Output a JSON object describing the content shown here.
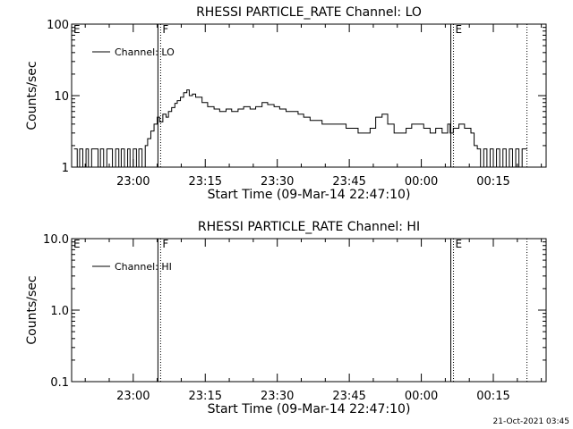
{
  "colors": {
    "background": "#ffffff",
    "foreground": "#000000"
  },
  "footer": {
    "timestamp": "21-Oct-2021 03:45"
  },
  "chart_data": [
    {
      "type": "line",
      "title": "RHESSI PARTICLE_RATE Channel: LO",
      "xlabel": "Start Time (09-Mar-14 22:47:10)",
      "ylabel": "Counts/sec",
      "yscale": "log",
      "ylim": [
        1,
        100
      ],
      "xlim": [
        "22:47:10",
        "00:26:00"
      ],
      "xticks": [
        "23:00",
        "23:15",
        "23:30",
        "23:45",
        "00:00",
        "00:15"
      ],
      "yticks": [
        "1",
        "10",
        "100"
      ],
      "grid": false,
      "legend": {
        "label": "Channel: LO",
        "position": "top-left"
      },
      "markers": [
        {
          "label": "F",
          "time": "23:05:20",
          "style": "solid+dotted"
        },
        {
          "label": "E",
          "time": "00:06:20",
          "style": "solid+dotted"
        },
        {
          "label": "",
          "time": "00:22:00",
          "style": "dotted"
        }
      ],
      "series": [
        {
          "x": [
            "22:47:40",
            "22:48:20",
            "22:48:50",
            "22:49:30",
            "22:50:10",
            "22:50:40",
            "22:51:20",
            "22:52:00",
            "22:52:40",
            "22:53:10",
            "22:53:50",
            "22:54:30",
            "22:55:00",
            "22:55:40",
            "22:56:20",
            "22:57:00",
            "22:57:30",
            "22:58:10",
            "22:58:50",
            "22:59:20",
            "23:00:00",
            "23:00:40",
            "23:01:10",
            "23:01:50",
            "23:02:30",
            "23:03:00",
            "23:03:40",
            "23:04:20",
            "23:05:00",
            "23:05:30",
            "23:06:10",
            "23:06:50",
            "23:07:20",
            "23:08:00",
            "23:08:40",
            "23:09:10",
            "23:09:50",
            "23:10:30",
            "23:11:10",
            "23:11:40",
            "23:12:20",
            "23:13:00",
            "23:14:20",
            "23:15:30",
            "23:16:50",
            "23:18:00",
            "23:19:20",
            "23:20:30",
            "23:21:50",
            "23:23:00",
            "23:24:20",
            "23:25:30",
            "23:26:50",
            "23:28:00",
            "23:29:20",
            "23:30:30",
            "23:31:50",
            "23:33:00",
            "23:34:20",
            "23:35:30",
            "23:36:50",
            "23:38:00",
            "23:39:20",
            "23:40:30",
            "23:41:50",
            "23:43:00",
            "23:44:20",
            "23:45:30",
            "23:46:50",
            "23:48:00",
            "23:49:20",
            "23:50:30",
            "23:51:50",
            "23:53:00",
            "23:54:20",
            "23:55:30",
            "23:56:50",
            "23:58:00",
            "23:59:20",
            "00:00:30",
            "00:01:50",
            "00:03:00",
            "00:04:20",
            "00:05:30",
            "00:06:00",
            "00:06:40",
            "00:07:50",
            "00:09:00",
            "00:10:20",
            "00:11:00",
            "00:11:40",
            "00:12:20",
            "00:13:00",
            "00:13:40",
            "00:14:20",
            "00:15:00",
            "00:15:40",
            "00:16:20",
            "00:17:00",
            "00:17:40",
            "00:18:20",
            "00:19:00",
            "00:19:40",
            "00:20:20",
            "00:21:00",
            "00:21:40"
          ],
          "values": [
            1.8,
            1,
            1.8,
            1,
            1.8,
            1,
            1.8,
            1.8,
            1,
            1.8,
            1,
            1.8,
            1.8,
            1,
            1.8,
            1,
            1.8,
            1,
            1.8,
            1,
            1.8,
            1,
            1.8,
            1,
            2,
            2.5,
            3.2,
            4,
            5,
            4.3,
            5.5,
            5,
            6,
            6.8,
            7.8,
            8.5,
            9.5,
            11,
            12,
            10,
            10.5,
            9.5,
            8,
            7,
            6.5,
            6,
            6.5,
            6,
            6.5,
            7,
            6.5,
            7,
            8,
            7.5,
            7,
            6.5,
            6,
            6,
            5.5,
            5,
            4.5,
            4.5,
            4,
            4,
            4,
            4,
            3.5,
            3.5,
            3,
            3,
            3.5,
            5,
            5.5,
            4,
            3,
            3,
            3.5,
            4,
            4,
            3.5,
            3,
            3.5,
            3,
            4,
            3,
            3.5,
            4,
            3.5,
            3,
            2,
            1.8,
            1,
            1.8,
            1,
            1.8,
            1,
            1.8,
            1,
            1.8,
            1,
            1.8,
            1,
            1.8,
            1,
            1.8,
            1.8
          ]
        }
      ]
    },
    {
      "type": "line",
      "title": "RHESSI PARTICLE_RATE Channel: HI",
      "xlabel": "Start Time (09-Mar-14 22:47:10)",
      "ylabel": "Counts/sec",
      "yscale": "log",
      "ylim": [
        0.1,
        10
      ],
      "xlim": [
        "22:47:10",
        "00:26:00"
      ],
      "xticks": [
        "23:00",
        "23:15",
        "23:30",
        "23:45",
        "00:00",
        "00:15"
      ],
      "yticks": [
        "0.1",
        "1.0",
        "10.0"
      ],
      "grid": false,
      "legend": {
        "label": "Channel: HI",
        "position": "top-left"
      },
      "markers": [
        {
          "label": "F",
          "time": "23:05:20",
          "style": "solid+dotted"
        },
        {
          "label": "E",
          "time": "00:06:20",
          "style": "solid+dotted"
        },
        {
          "label": "",
          "time": "00:22:00",
          "style": "dotted"
        }
      ],
      "series": [
        {
          "x": [],
          "values": []
        }
      ]
    }
  ]
}
